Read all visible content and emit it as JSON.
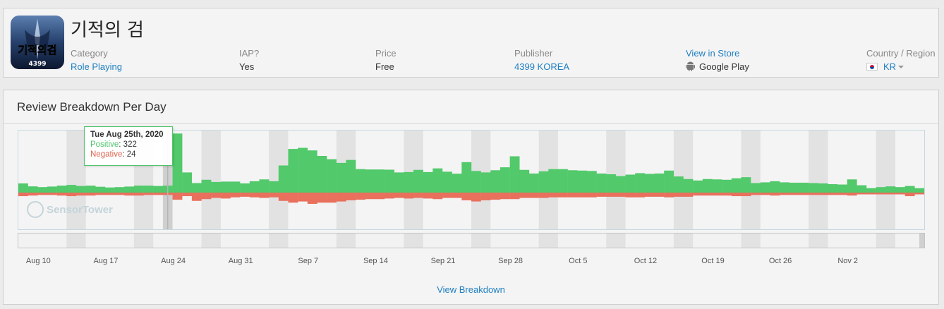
{
  "app": {
    "title": "기적의 검",
    "icon_text": "기적의검",
    "icon_publisher": "4399",
    "category_label": "Category",
    "category_value": "Role Playing",
    "iap_label": "IAP?",
    "iap_value": "Yes",
    "price_label": "Price",
    "price_value": "Free",
    "publisher_label": "Publisher",
    "publisher_value": "4399 KOREA",
    "store_label": "View in Store",
    "store_value": "Google Play",
    "region_label": "Country / Region",
    "region_value": "KR"
  },
  "chart": {
    "title": "Review Breakdown Per Day",
    "watermark": "SensorTower",
    "view_link": "View Breakdown",
    "tooltip": {
      "date": "Tue Aug 25th, 2020",
      "positive_label": "Positive",
      "positive_value": "322",
      "negative_label": "Negative",
      "negative_value": "24"
    },
    "x_ticks": [
      "Aug 10",
      "Aug 17",
      "Aug 24",
      "Aug 31",
      "Sep 7",
      "Sep 14",
      "Sep 21",
      "Sep 28",
      "Oct 5",
      "Oct 12",
      "Oct 19",
      "Oct 26",
      "Nov 2"
    ]
  },
  "colors": {
    "positive": "#52c96b",
    "negative": "#e9705d",
    "link": "#1f7fc1"
  },
  "chart_data": {
    "type": "bar",
    "x_start": "Aug 10",
    "x_end": "Nov 8",
    "series": [
      {
        "name": "Positive",
        "values": [
          50,
          34,
          30,
          33,
          38,
          42,
          36,
          38,
          32,
          28,
          30,
          33,
          38,
          38,
          36,
          38,
          322,
          110,
          52,
          70,
          58,
          60,
          60,
          50,
          62,
          72,
          62,
          148,
          238,
          244,
          230,
          200,
          182,
          162,
          178,
          128,
          126,
          126,
          125,
          110,
          112,
          124,
          112,
          132,
          114,
          103,
          166,
          118,
          110,
          122,
          138,
          198,
          124,
          104,
          116,
          128,
          128,
          122,
          120,
          118,
          104,
          100,
          90,
          98,
          106,
          102,
          104,
          120,
          88,
          74,
          66,
          74,
          72,
          70,
          78,
          84,
          52,
          56,
          62,
          56,
          54,
          54,
          52,
          50,
          46,
          44,
          72,
          40,
          24,
          30,
          34,
          30,
          36,
          24
        ]
      },
      {
        "name": "Negative",
        "values": [
          12,
          10,
          8,
          8,
          10,
          12,
          10,
          10,
          8,
          8,
          8,
          10,
          10,
          8,
          8,
          8,
          24,
          12,
          28,
          22,
          18,
          20,
          16,
          14,
          16,
          18,
          16,
          28,
          34,
          30,
          38,
          34,
          34,
          30,
          26,
          24,
          22,
          22,
          20,
          18,
          20,
          18,
          20,
          22,
          18,
          18,
          26,
          30,
          26,
          24,
          22,
          22,
          18,
          18,
          18,
          16,
          16,
          16,
          16,
          16,
          14,
          14,
          14,
          16,
          16,
          14,
          14,
          16,
          14,
          14,
          10,
          10,
          10,
          10,
          12,
          12,
          8,
          8,
          10,
          8,
          8,
          8,
          8,
          8,
          8,
          8,
          10,
          6,
          6,
          6,
          6,
          6,
          12,
          6
        ]
      }
    ]
  }
}
